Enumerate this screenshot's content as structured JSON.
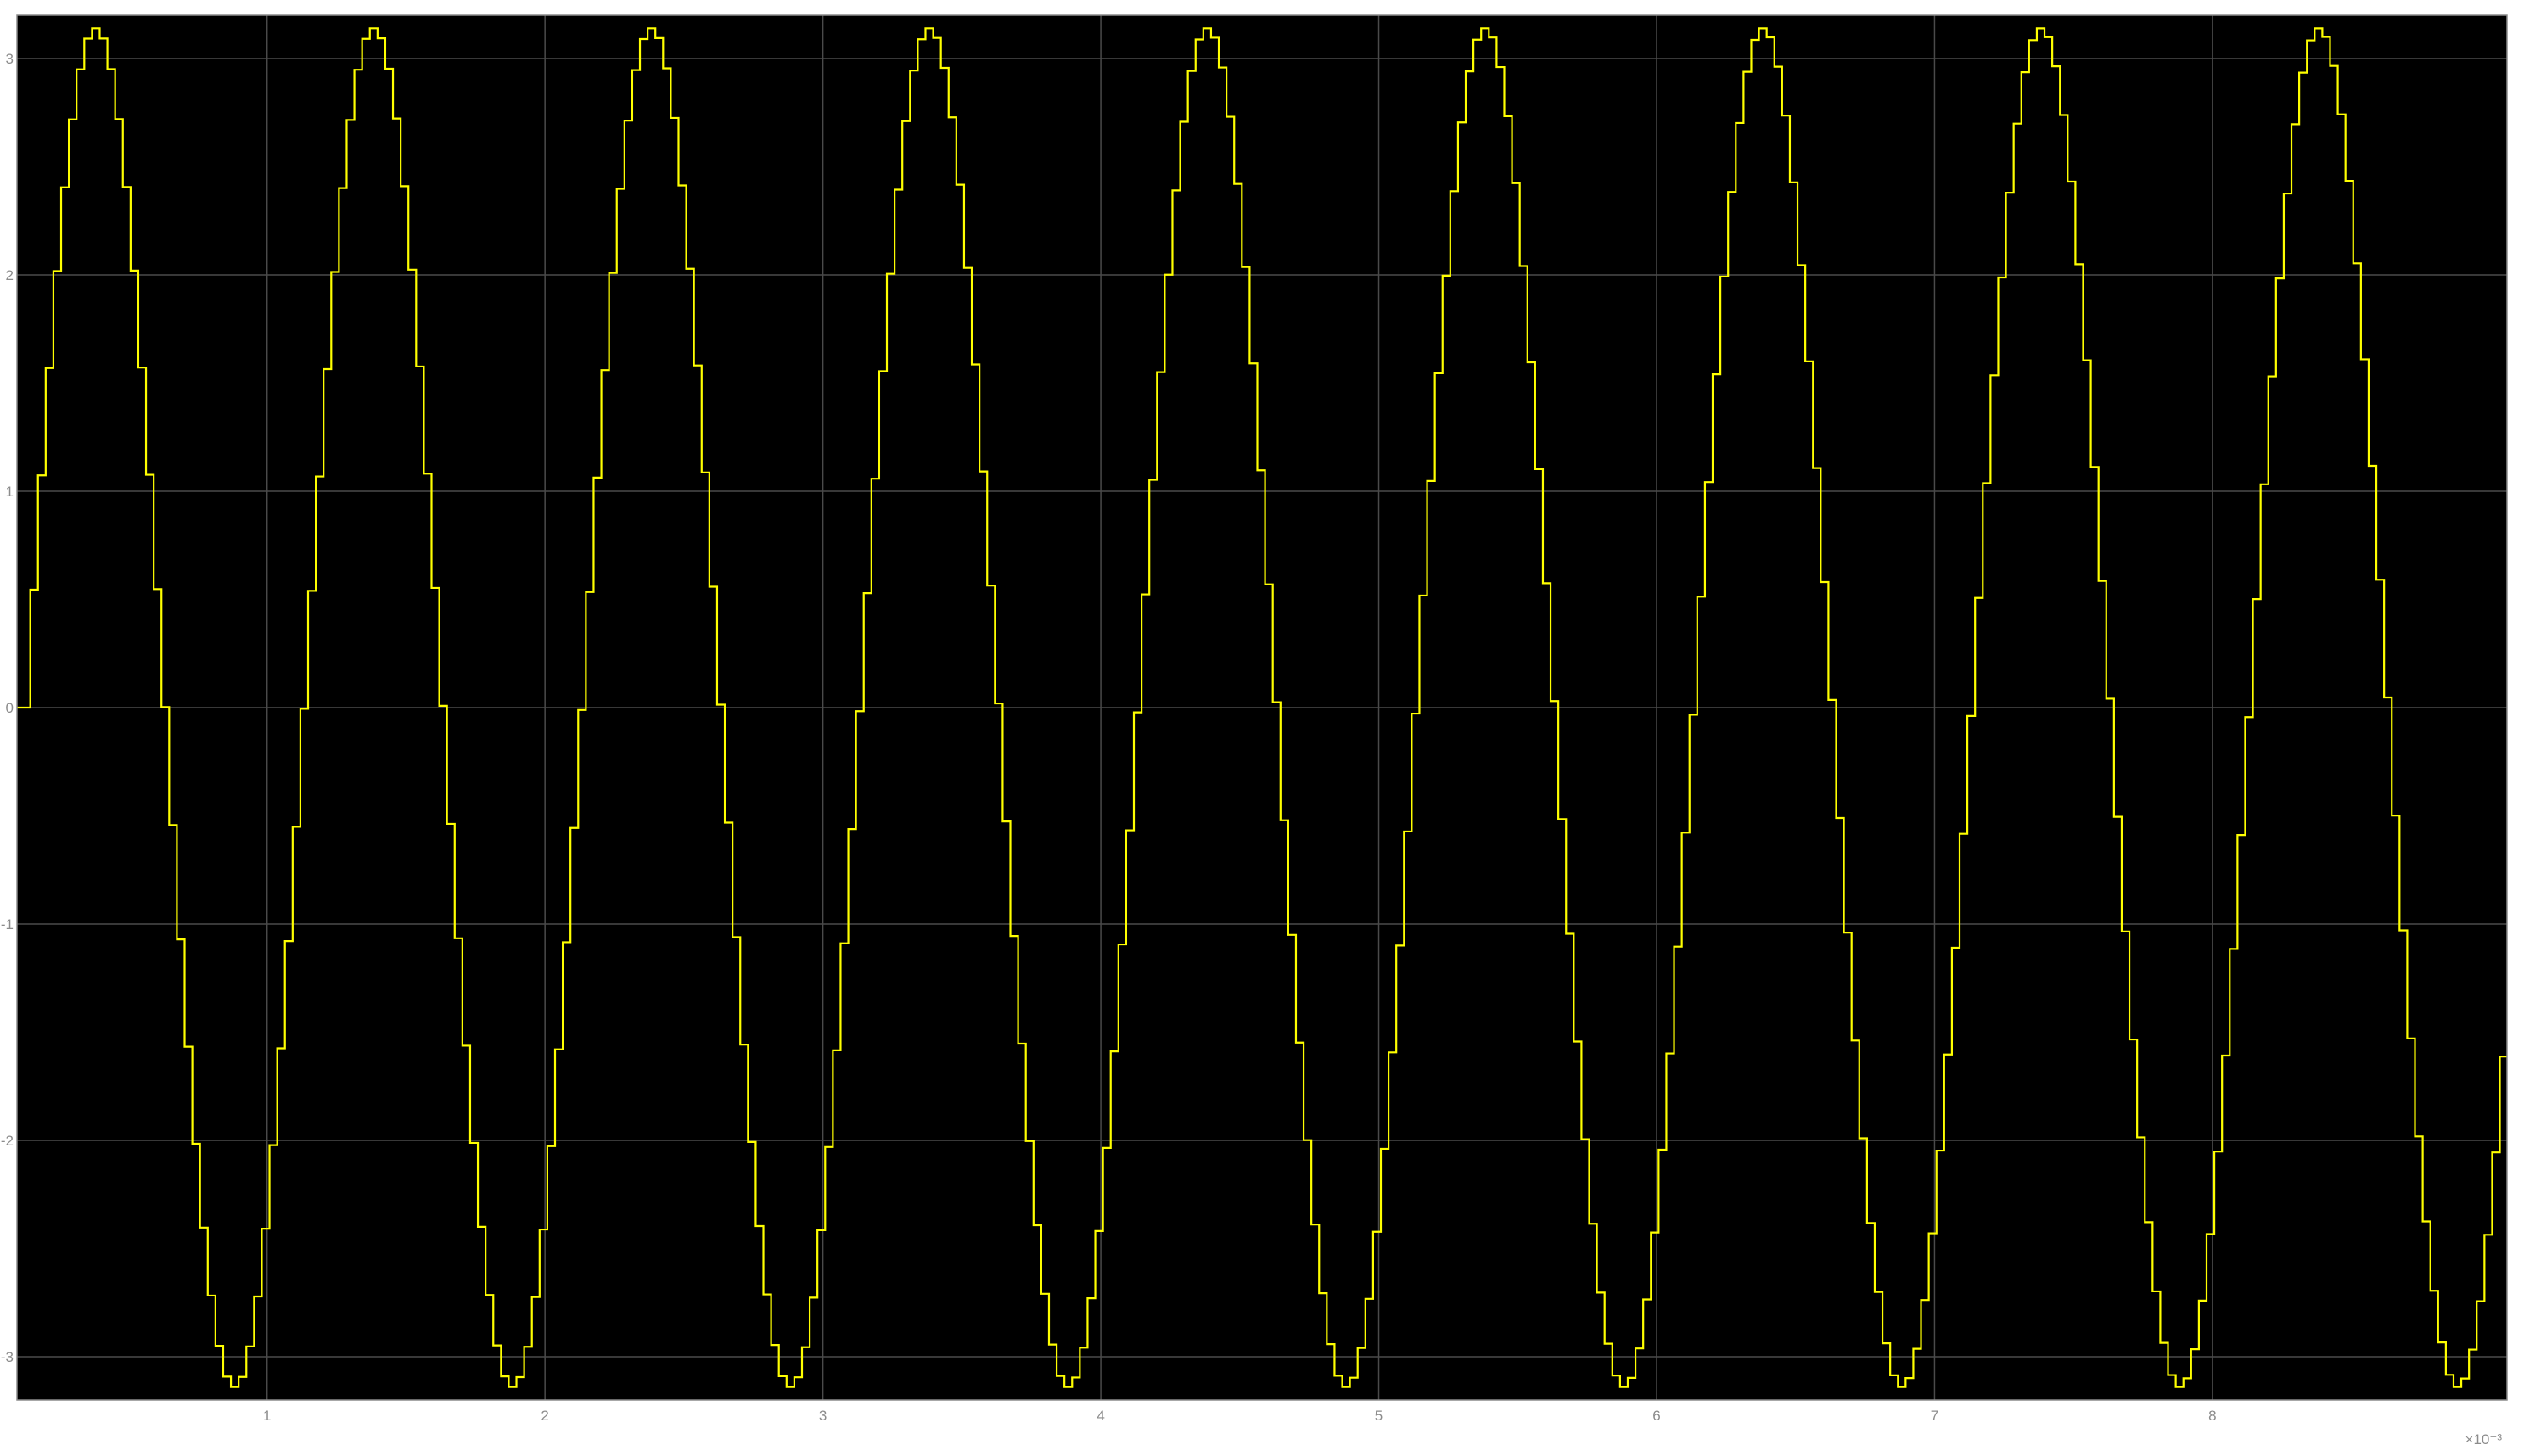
{
  "chart_data": {
    "type": "line",
    "title": "",
    "xlabel": "",
    "ylabel": "",
    "xlim": [
      0.0001,
      0.00906
    ],
    "ylim": [
      -3.2,
      3.2
    ],
    "x_ticks": [
      0.001,
      0.002,
      0.003,
      0.004,
      0.005,
      0.006,
      0.007,
      0.008
    ],
    "x_tick_labels": [
      "1",
      "2",
      "3",
      "4",
      "5",
      "6",
      "7",
      "8"
    ],
    "x_exponent_label": "×10⁻³",
    "y_ticks": [
      -3,
      -2,
      -1,
      0,
      1,
      2,
      3
    ],
    "y_tick_labels": [
      "-3",
      "-2",
      "-1",
      "0",
      "1",
      "2",
      "3"
    ],
    "grid": true,
    "legend": "none",
    "series": [
      {
        "style": "staircase",
        "waveform": "sine",
        "amplitude": 3.14,
        "frequency_hz": 1000,
        "phase_start_x": 0.00012,
        "sample_interval": 2.777e-05,
        "color": "#ffff00"
      }
    ],
    "colors": {
      "plot_background": "#000000",
      "figure_background": "#ffffff",
      "grid": "#4a4a4a",
      "tick_text": "#8c8c8c",
      "axes_border": "#8c8c8c"
    }
  }
}
